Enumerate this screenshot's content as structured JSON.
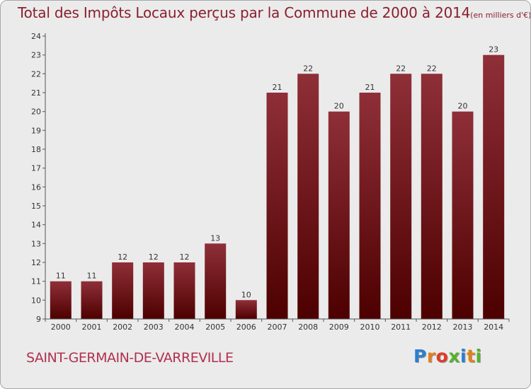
{
  "chart_data": {
    "type": "bar",
    "title": "Total des Impôts Locaux perçus par la Commune de 2000 à 2014",
    "unit_note": "(en milliers d'€)",
    "categories": [
      "2000",
      "2001",
      "2002",
      "2003",
      "2004",
      "2005",
      "2006",
      "2007",
      "2008",
      "2009",
      "2010",
      "2011",
      "2012",
      "2013",
      "2014"
    ],
    "values": [
      11,
      11,
      12,
      12,
      12,
      13,
      10,
      21,
      22,
      20,
      21,
      22,
      22,
      20,
      23
    ],
    "ylim": [
      9,
      24
    ],
    "yticks": [
      9,
      10,
      11,
      12,
      13,
      14,
      15,
      16,
      17,
      18,
      19,
      20,
      21,
      22,
      23,
      24
    ],
    "grid": false,
    "bar_color_top": "#8f2f38",
    "bar_color_bottom": "#4d0000"
  },
  "commune_name": "SAINT-GERMAIN-DE-VARREVILLE",
  "brand": {
    "letters": [
      "P",
      "r",
      "o",
      "x",
      "i",
      "t",
      "i"
    ],
    "colors": [
      "#2a7fd0",
      "#e2801e",
      "#e03a2a",
      "#58b030",
      "#2a7fd0",
      "#e2801e",
      "#58b030"
    ]
  }
}
